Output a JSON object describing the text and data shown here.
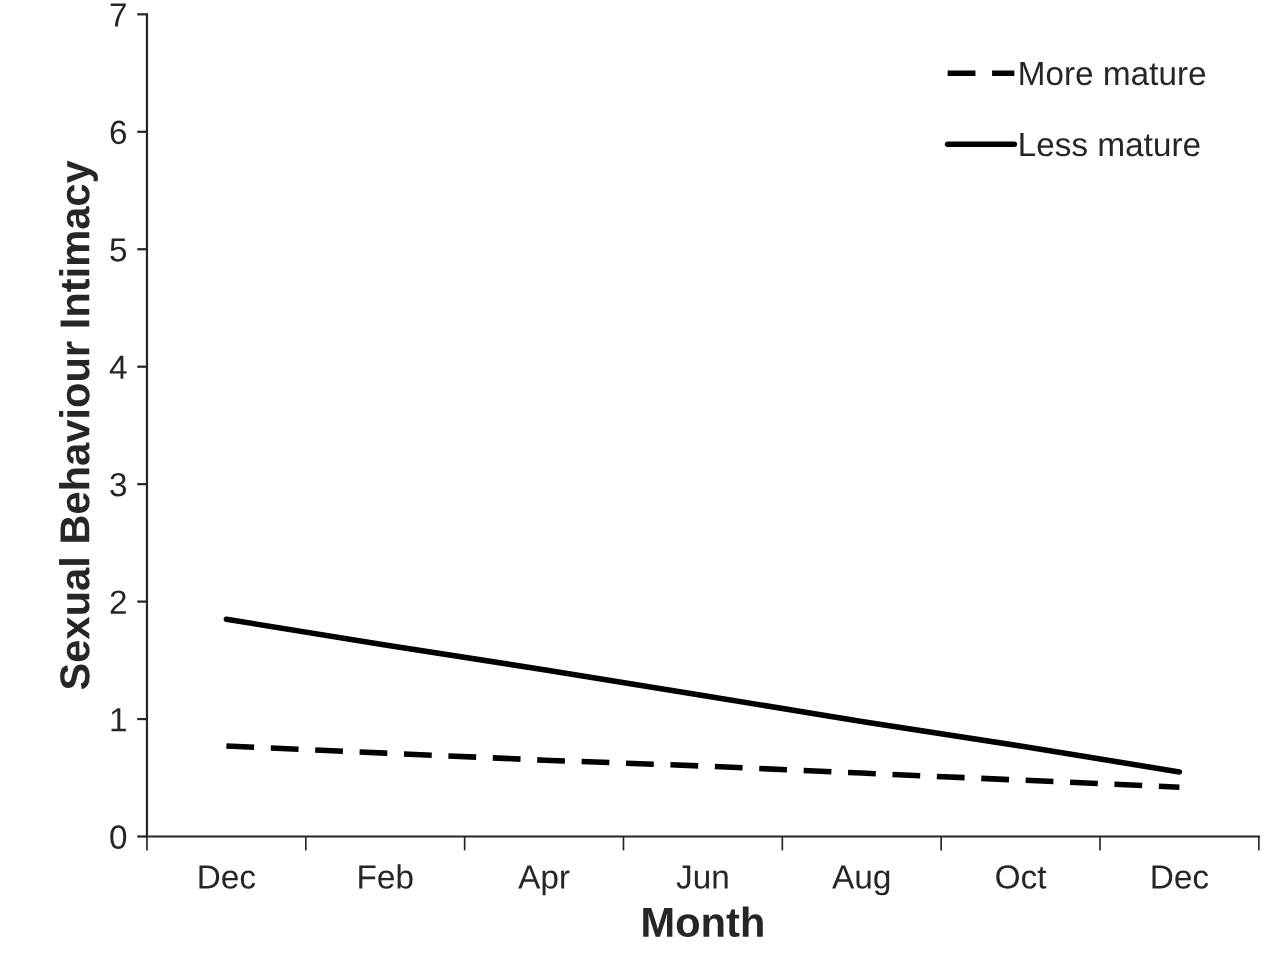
{
  "chart_data": {
    "type": "line",
    "xlabel": "Month",
    "ylabel": "Sexual Behaviour Intimacy",
    "categories": [
      "Dec",
      "Feb",
      "Apr",
      "Jun",
      "Aug",
      "Oct",
      "Dec"
    ],
    "series": [
      {
        "name": "More mature",
        "color": "#000000",
        "line_style": "dashed",
        "values": [
          0.77,
          0.71,
          0.65,
          0.6,
          0.54,
          0.48,
          0.42
        ]
      },
      {
        "name": "Less mature",
        "color": "#000000",
        "line_style": "solid",
        "values": [
          1.85,
          1.63,
          1.42,
          1.2,
          0.98,
          0.77,
          0.55
        ]
      }
    ],
    "ylim": [
      0,
      7
    ],
    "yticks": [
      0,
      1,
      2,
      3,
      4,
      5,
      6,
      7
    ],
    "grid": false,
    "legend": "top right",
    "marker": "none"
  }
}
